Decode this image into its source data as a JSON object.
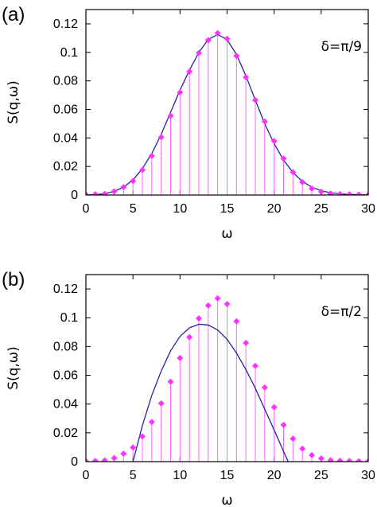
{
  "chart_data": [
    {
      "type": "scatter",
      "panel_label": "(a)",
      "annotation": "δ=π/9",
      "xlabel": "ω",
      "ylabel": "S(q,ω)",
      "xlim": [
        0,
        30
      ],
      "ylim": [
        0,
        0.13
      ],
      "x_ticks": [
        "0",
        "5",
        "10",
        "15",
        "20",
        "25",
        "30"
      ],
      "y_ticks": [
        "0",
        "0.02",
        "0.04",
        "0.06",
        "0.08",
        "0.1",
        "0.12"
      ],
      "grid": false,
      "colors": {
        "points": "#ff33ff",
        "sticks": "#ff66ff",
        "curve": "#2222aa"
      },
      "series": [
        {
          "style": "diamond points with vertical sticks",
          "x": [
            0,
            1,
            2,
            3,
            4,
            5,
            6,
            7,
            8,
            9,
            10,
            11,
            12,
            13,
            14,
            15,
            16,
            17,
            18,
            19,
            20,
            21,
            22,
            23,
            24,
            25,
            26,
            27,
            28,
            29,
            30
          ],
          "values": [
            0.0003,
            0.0005,
            0.0008,
            0.0025,
            0.0055,
            0.0098,
            0.0175,
            0.0275,
            0.0405,
            0.0555,
            0.072,
            0.0865,
            0.0995,
            0.1085,
            0.1135,
            0.1095,
            0.0975,
            0.0825,
            0.0665,
            0.0515,
            0.0378,
            0.0255,
            0.016,
            0.009,
            0.0045,
            0.0022,
            0.001,
            0.0006,
            0.0004,
            0.0003,
            0.0003
          ]
        },
        {
          "style": "smooth line",
          "x": [
            0,
            1,
            2,
            3,
            4,
            5,
            6,
            7,
            8,
            9,
            10,
            11,
            12,
            13,
            14,
            15,
            16,
            17,
            18,
            19,
            20,
            21,
            22,
            23,
            24,
            25,
            26,
            27,
            28,
            29,
            30
          ],
          "values": [
            0,
            0.0003,
            0.0009,
            0.0025,
            0.0055,
            0.0105,
            0.0185,
            0.029,
            0.0425,
            0.058,
            0.0735,
            0.0875,
            0.1,
            0.109,
            0.1125,
            0.109,
            0.0985,
            0.0835,
            0.0665,
            0.05,
            0.036,
            0.0245,
            0.0158,
            0.0095,
            0.0055,
            0.003,
            0.0016,
            0.0008,
            0.0004,
            0.0002,
            0
          ]
        }
      ]
    },
    {
      "type": "scatter",
      "panel_label": "(b)",
      "annotation": "δ=π/2",
      "xlabel": "ω",
      "ylabel": "S(q,ω)",
      "xlim": [
        0,
        30
      ],
      "ylim": [
        0,
        0.13
      ],
      "x_ticks": [
        "0",
        "5",
        "10",
        "15",
        "20",
        "25",
        "30"
      ],
      "y_ticks": [
        "0",
        "0.02",
        "0.04",
        "0.06",
        "0.08",
        "0.1",
        "0.12"
      ],
      "grid": false,
      "colors": {
        "points": "#ff33ff",
        "sticks": "#ff66ff",
        "curve": "#2222aa"
      },
      "series": [
        {
          "style": "diamond points with vertical sticks",
          "x": [
            0,
            1,
            2,
            3,
            4,
            5,
            6,
            7,
            8,
            9,
            10,
            11,
            12,
            13,
            14,
            15,
            16,
            17,
            18,
            19,
            20,
            21,
            22,
            23,
            24,
            25,
            26,
            27,
            28,
            29,
            30
          ],
          "values": [
            0.0003,
            0.0005,
            0.0008,
            0.0025,
            0.0055,
            0.0098,
            0.0175,
            0.0275,
            0.0405,
            0.0555,
            0.072,
            0.0865,
            0.0995,
            0.1085,
            0.1135,
            0.1095,
            0.0975,
            0.0825,
            0.0665,
            0.0515,
            0.0378,
            0.0255,
            0.016,
            0.009,
            0.0045,
            0.0022,
            0.001,
            0.0006,
            0.0004,
            0.0003,
            0.0003
          ]
        },
        {
          "style": "smooth line",
          "x": [
            5,
            6,
            7,
            8,
            9,
            10,
            11,
            12,
            13,
            14,
            15,
            16,
            17,
            18,
            19,
            20,
            21,
            21.5
          ],
          "values": [
            0,
            0.025,
            0.046,
            0.063,
            0.077,
            0.087,
            0.093,
            0.0955,
            0.095,
            0.0915,
            0.085,
            0.0755,
            0.064,
            0.051,
            0.0365,
            0.022,
            0.007,
            0
          ]
        }
      ]
    }
  ]
}
